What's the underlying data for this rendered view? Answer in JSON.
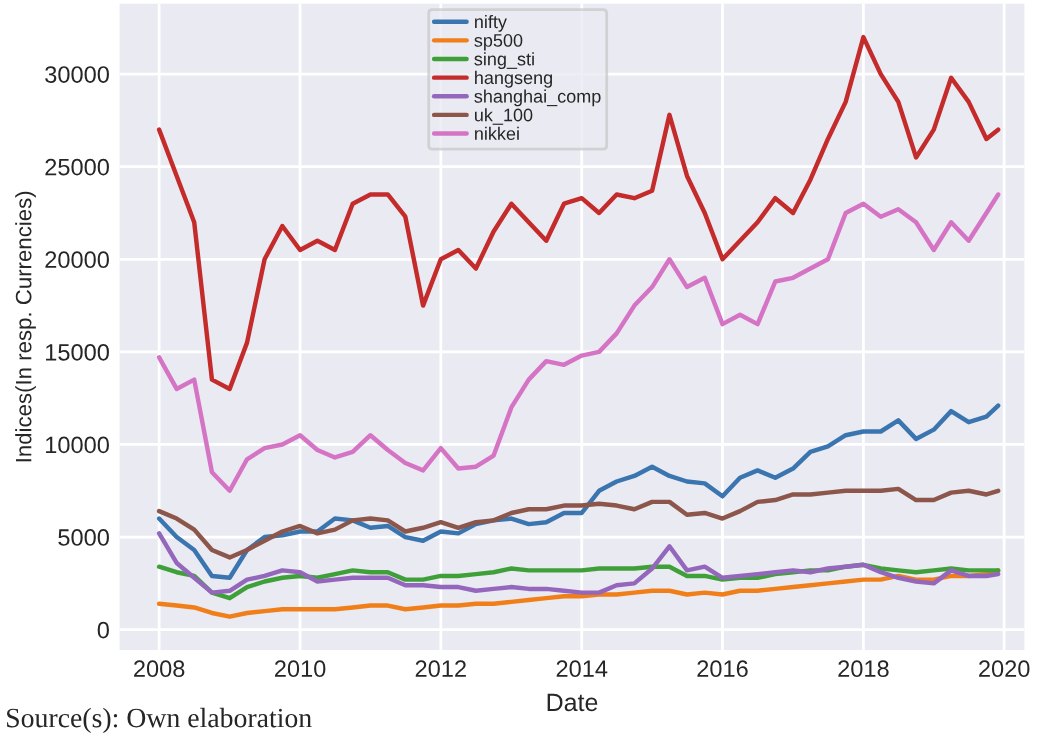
{
  "chart_data": {
    "type": "line",
    "xlabel": "Date",
    "ylabel": "Indices(In resp. Currencies)",
    "annotations": [
      "Source(s): Own elaboration"
    ],
    "x": [
      "2008-01",
      "2008-04",
      "2008-07",
      "2008-10",
      "2009-01",
      "2009-04",
      "2009-07",
      "2009-10",
      "2010-01",
      "2010-04",
      "2010-07",
      "2010-10",
      "2011-01",
      "2011-04",
      "2011-07",
      "2011-10",
      "2012-01",
      "2012-04",
      "2012-07",
      "2012-10",
      "2013-01",
      "2013-04",
      "2013-07",
      "2013-10",
      "2014-01",
      "2014-04",
      "2014-07",
      "2014-10",
      "2015-01",
      "2015-04",
      "2015-07",
      "2015-10",
      "2016-01",
      "2016-04",
      "2016-07",
      "2016-10",
      "2017-01",
      "2017-04",
      "2017-07",
      "2017-10",
      "2018-01",
      "2018-04",
      "2018-07",
      "2018-10",
      "2019-01",
      "2019-04",
      "2019-07",
      "2019-10",
      "2019-12"
    ],
    "series": [
      {
        "name": "nifty",
        "color": "#3a75b0",
        "values": [
          6000,
          5000,
          4300,
          2900,
          2800,
          4300,
          5000,
          5100,
          5300,
          5300,
          6000,
          5900,
          5500,
          5600,
          5000,
          4800,
          5300,
          5200,
          5700,
          5900,
          6000,
          5700,
          5800,
          6300,
          6300,
          7500,
          8000,
          8300,
          8800,
          8300,
          8000,
          7900,
          7200,
          8200,
          8600,
          8200,
          8700,
          9600,
          9900,
          10500,
          10700,
          10700,
          11300,
          10300,
          10800,
          11800,
          11200,
          11500,
          12100
        ]
      },
      {
        "name": "sp500",
        "color": "#f07f1a",
        "values": [
          1400,
          1300,
          1200,
          900,
          700,
          900,
          1000,
          1100,
          1100,
          1100,
          1100,
          1200,
          1300,
          1300,
          1100,
          1200,
          1300,
          1300,
          1400,
          1400,
          1500,
          1600,
          1700,
          1800,
          1800,
          1900,
          1900,
          2000,
          2100,
          2100,
          1900,
          2000,
          1900,
          2100,
          2100,
          2200,
          2300,
          2400,
          2500,
          2600,
          2700,
          2700,
          2900,
          2700,
          2700,
          2900,
          2900,
          3000,
          3200
        ]
      },
      {
        "name": "sing_sti",
        "color": "#3fa03a",
        "values": [
          3400,
          3100,
          2900,
          2000,
          1700,
          2300,
          2600,
          2800,
          2900,
          2800,
          3000,
          3200,
          3100,
          3100,
          2700,
          2700,
          2900,
          2900,
          3000,
          3100,
          3300,
          3200,
          3200,
          3200,
          3200,
          3300,
          3300,
          3300,
          3400,
          3400,
          2900,
          2900,
          2700,
          2800,
          2800,
          3000,
          3100,
          3200,
          3200,
          3400,
          3500,
          3300,
          3200,
          3100,
          3200,
          3300,
          3200,
          3200,
          3200
        ]
      },
      {
        "name": "hangseng",
        "color": "#c42b2b",
        "values": [
          27000,
          24500,
          22000,
          13500,
          13000,
          15500,
          20000,
          21800,
          20500,
          21000,
          20500,
          23000,
          23500,
          23500,
          22300,
          17500,
          20000,
          20500,
          19500,
          21500,
          23000,
          22000,
          21000,
          23000,
          23300,
          22500,
          23500,
          23300,
          23700,
          27800,
          24500,
          22500,
          20000,
          21000,
          22000,
          23300,
          22500,
          24300,
          26500,
          28500,
          32000,
          30000,
          28500,
          25500,
          27000,
          29800,
          28500,
          26500,
          27000
        ]
      },
      {
        "name": "shanghai_comp",
        "color": "#9467bd",
        "values": [
          5200,
          3600,
          2800,
          2000,
          2100,
          2700,
          2900,
          3200,
          3100,
          2600,
          2700,
          2800,
          2800,
          2800,
          2400,
          2400,
          2300,
          2300,
          2100,
          2200,
          2300,
          2200,
          2200,
          2100,
          2000,
          2000,
          2400,
          2500,
          3300,
          4500,
          3200,
          3400,
          2800,
          2900,
          3000,
          3100,
          3200,
          3100,
          3300,
          3400,
          3500,
          3100,
          2800,
          2600,
          2500,
          3200,
          2900,
          2900,
          3000
        ]
      },
      {
        "name": "uk_100",
        "color": "#8c564b",
        "values": [
          6400,
          6000,
          5400,
          4300,
          3900,
          4300,
          4800,
          5300,
          5600,
          5200,
          5400,
          5900,
          6000,
          5900,
          5300,
          5500,
          5800,
          5500,
          5800,
          5900,
          6300,
          6500,
          6500,
          6700,
          6700,
          6800,
          6700,
          6500,
          6900,
          6900,
          6200,
          6300,
          6000,
          6400,
          6900,
          7000,
          7300,
          7300,
          7400,
          7500,
          7500,
          7500,
          7600,
          7000,
          7000,
          7400,
          7500,
          7300,
          7500
        ]
      },
      {
        "name": "nikkei",
        "color": "#d574c4",
        "values": [
          14700,
          13000,
          13500,
          8500,
          7500,
          9200,
          9800,
          10000,
          10500,
          9700,
          9300,
          9600,
          10500,
          9700,
          9000,
          8600,
          9800,
          8700,
          8800,
          9400,
          12000,
          13500,
          14500,
          14300,
          14800,
          15000,
          16000,
          17500,
          18500,
          20000,
          18500,
          19000,
          16500,
          17000,
          16500,
          18800,
          19000,
          19500,
          20000,
          22500,
          23000,
          22300,
          22700,
          22000,
          20500,
          22000,
          21000,
          22500,
          23500
        ]
      }
    ],
    "xlim": [
      "2007-06-10",
      "2020-04-15"
    ],
    "xticks": [
      {
        "value": "2008-01-01",
        "label": "2008"
      },
      {
        "value": "2010-01-01",
        "label": "2010"
      },
      {
        "value": "2012-01-01",
        "label": "2012"
      },
      {
        "value": "2014-01-01",
        "label": "2014"
      },
      {
        "value": "2016-01-01",
        "label": "2016"
      },
      {
        "value": "2018-01-01",
        "label": "2018"
      },
      {
        "value": "2020-01-01",
        "label": "2020"
      }
    ],
    "ylim": [
      -1100,
      33800
    ],
    "yticks": [
      0,
      5000,
      10000,
      15000,
      20000,
      25000,
      30000
    ],
    "grid": true,
    "legend": "top",
    "marker": "none",
    "line_style": "solid"
  }
}
